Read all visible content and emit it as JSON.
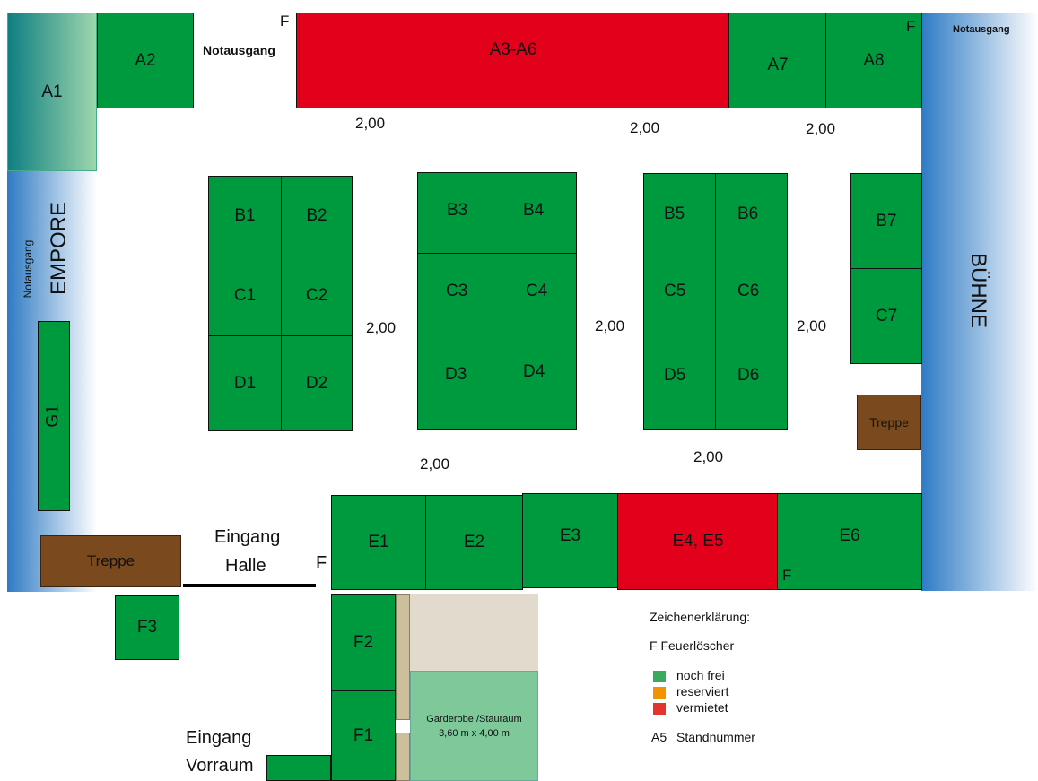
{
  "stands": {
    "A1": "A1",
    "A2": "A2",
    "A3A6": "A3-A6",
    "A7": "A7",
    "A8": "A8",
    "B1": "B1",
    "B2": "B2",
    "B3": "B3",
    "B4": "B4",
    "B5": "B5",
    "B6": "B6",
    "B7": "B7",
    "C1": "C1",
    "C2": "C2",
    "C3": "C3",
    "C4": "C4",
    "C5": "C5",
    "C6": "C6",
    "C7": "C7",
    "D1": "D1",
    "D2": "D2",
    "D3": "D3",
    "D4": "D4",
    "D5": "D5",
    "D6": "D6",
    "E1": "E1",
    "E2": "E2",
    "E3": "E3",
    "E4E5": "E4, E5",
    "E6": "E6",
    "F1": "F1",
    "F2": "F2",
    "F3": "F3",
    "G1": "G1"
  },
  "labels": {
    "notausgang": "Notausgang",
    "empore": "EMPORE",
    "buehne": "BÜHNE",
    "treppe": "Treppe",
    "eingang_halle_1": "Eingang",
    "eingang_halle_2": "Halle",
    "eingang_vorraum_1": "Eingang",
    "eingang_vorraum_2": "Vorraum",
    "garderobe_1": "Garderobe /Stauraum",
    "garderobe_2": "3,60 m x 4,00 m",
    "fire": "F",
    "aisle": "2,00"
  },
  "legend": {
    "title": "Zeichenerklärung:",
    "fire_row": "F  Feuerlöscher",
    "items": [
      {
        "label": "noch frei",
        "color": "#3aaa5c"
      },
      {
        "label": "reserviert",
        "color": "#f39200"
      },
      {
        "label": "vermietet",
        "color": "#e3342f"
      }
    ],
    "standnr_code": "A5",
    "standnr_label": "Standnummer"
  },
  "colors": {
    "free": "#009a3e",
    "rented": "#e3001b",
    "wall_blue": "#2e7bc4",
    "stairs": "#7a4a1e",
    "garderobe": "#7ec89a"
  }
}
